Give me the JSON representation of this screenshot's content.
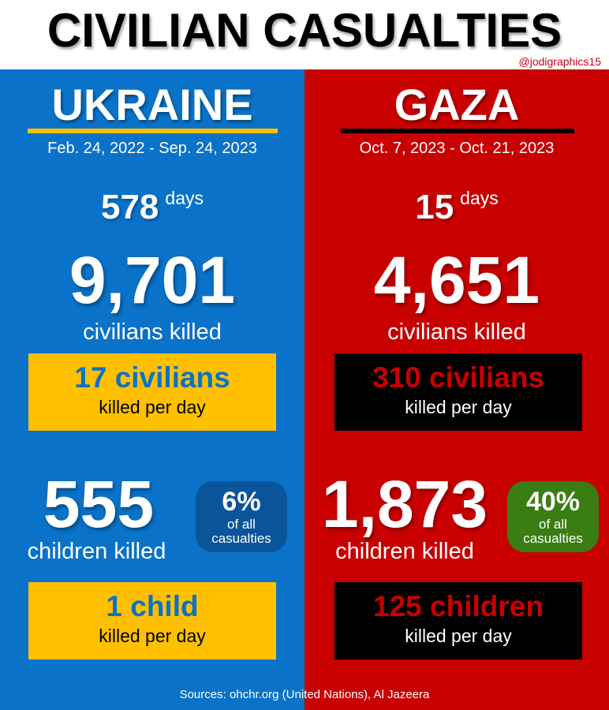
{
  "title": "CIVILIAN CASUALTIES",
  "handle": "@jodigraphics15",
  "colors": {
    "ukraine_bg": "#0a72c8",
    "gaza_bg": "#c80000",
    "yellow": "#ffc000",
    "ukraine_badge": "#0a559a",
    "gaza_badge": "#3a7d12"
  },
  "ukraine": {
    "name": "UKRAINE",
    "dates": "Feb. 24, 2022 - Sep. 24, 2023",
    "days": "578",
    "days_unit": "days",
    "civilians_killed": "9,701",
    "civilians_label": "civilians killed",
    "civ_per_day": "17 civilians",
    "per_day_label": "killed per day",
    "children_killed": "555",
    "children_label": "children killed",
    "children_pct": "6%",
    "pct_label": "of all casualties",
    "children_per_day": "1 child"
  },
  "gaza": {
    "name": "GAZA",
    "dates": "Oct. 7, 2023 - Oct. 21, 2023",
    "days": "15",
    "days_unit": "days",
    "civilians_killed": "4,651",
    "civilians_label": "civilians killed",
    "civ_per_day": "310 civilians",
    "per_day_label": "killed per day",
    "children_killed": "1,873",
    "children_label": "children killed",
    "children_pct": "40%",
    "pct_label": "of all casualties",
    "children_per_day": "125 children"
  },
  "sources": "Sources: ohchr.org (United Nations), Al Jazeera"
}
